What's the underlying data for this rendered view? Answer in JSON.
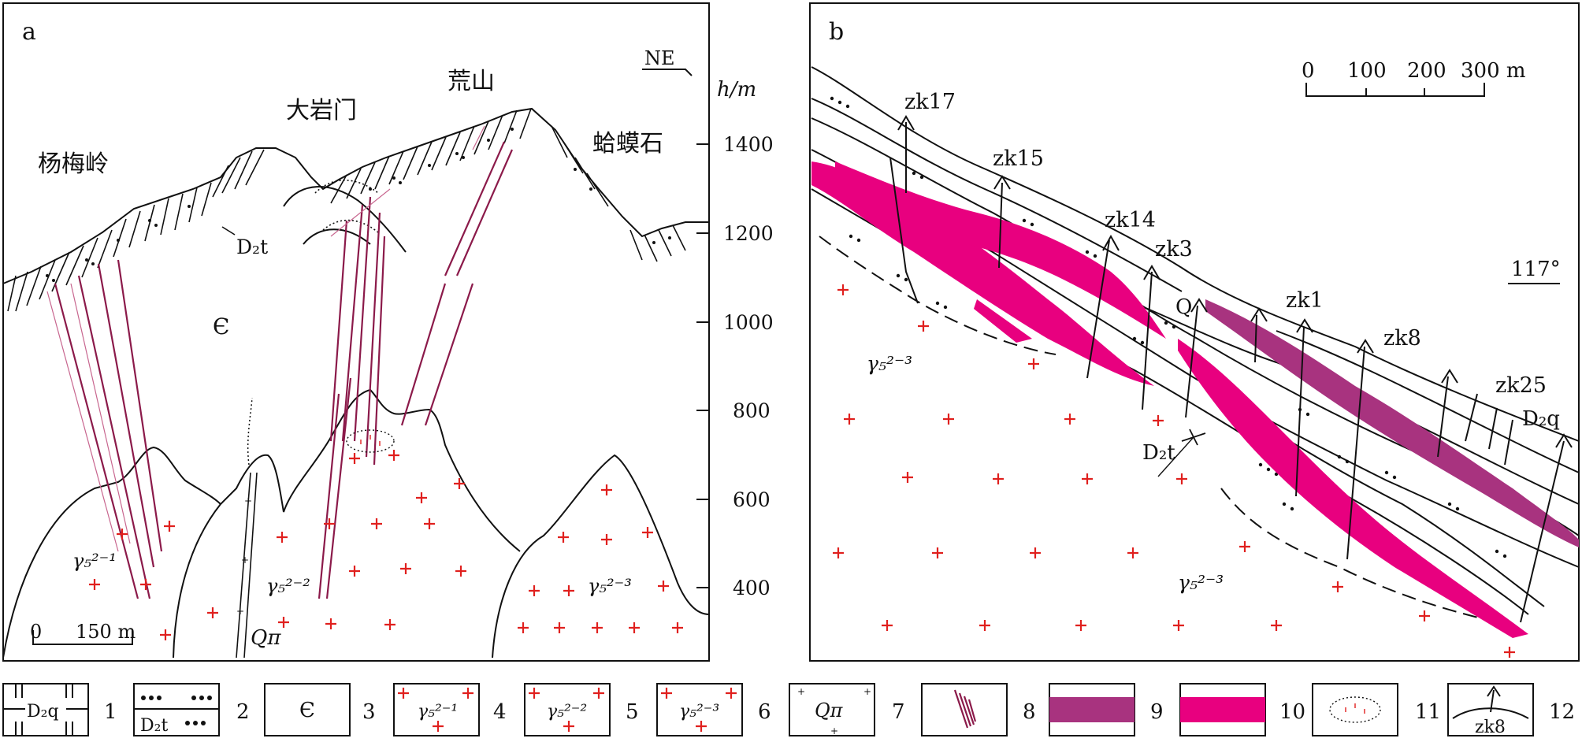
{
  "panel_a": {
    "label": "a",
    "direction": "NE",
    "height_unit": "h/m",
    "height_ticks": [
      "1400",
      "1200",
      "1000",
      "800",
      "600",
      "400"
    ],
    "places": {
      "yangmeiling": "杨梅岭",
      "dayanmen": "大岩门",
      "huangshan": "荒山",
      "hamashi": "蛤蟆石"
    },
    "strata": {
      "d2t": "D₂t",
      "cambrian": "Є",
      "qpi": "Qπ"
    },
    "granites": {
      "g1": "γ₅²⁻¹",
      "g2": "γ₅²⁻²",
      "g3": "γ₅²⁻³"
    },
    "scale_zero": "0",
    "scale_label": "150 m"
  },
  "panel_b": {
    "label": "b",
    "azimuth": "117°",
    "scale_labels": [
      "0",
      "100",
      "200",
      "300 m"
    ],
    "drillholes": [
      "zk17",
      "zk15",
      "zk14",
      "zk3",
      "zk1",
      "zk8",
      "zk25"
    ],
    "strata": {
      "q": "Q",
      "d2t": "D₂t",
      "d2q": "D₂q"
    },
    "granite": "γ₅²⁻³"
  },
  "legend": {
    "items": [
      {
        "num": "1",
        "text": "D₂q"
      },
      {
        "num": "2",
        "text": "D₂t"
      },
      {
        "num": "3",
        "text": "Є"
      },
      {
        "num": "4",
        "text": "γ₅²⁻¹"
      },
      {
        "num": "5",
        "text": "γ₅²⁻²"
      },
      {
        "num": "6",
        "text": "γ₅²⁻³"
      },
      {
        "num": "7",
        "text": "Qπ"
      },
      {
        "num": "8",
        "text": ""
      },
      {
        "num": "9",
        "text": ""
      },
      {
        "num": "10",
        "text": ""
      },
      {
        "num": "11",
        "text": ""
      },
      {
        "num": "12",
        "text": "zk8"
      }
    ]
  },
  "colors": {
    "ore_magenta": "#e8007f",
    "ore_purple": "#a8337f",
    "vein": "#8b1a4a",
    "cross": "#e0201e"
  }
}
